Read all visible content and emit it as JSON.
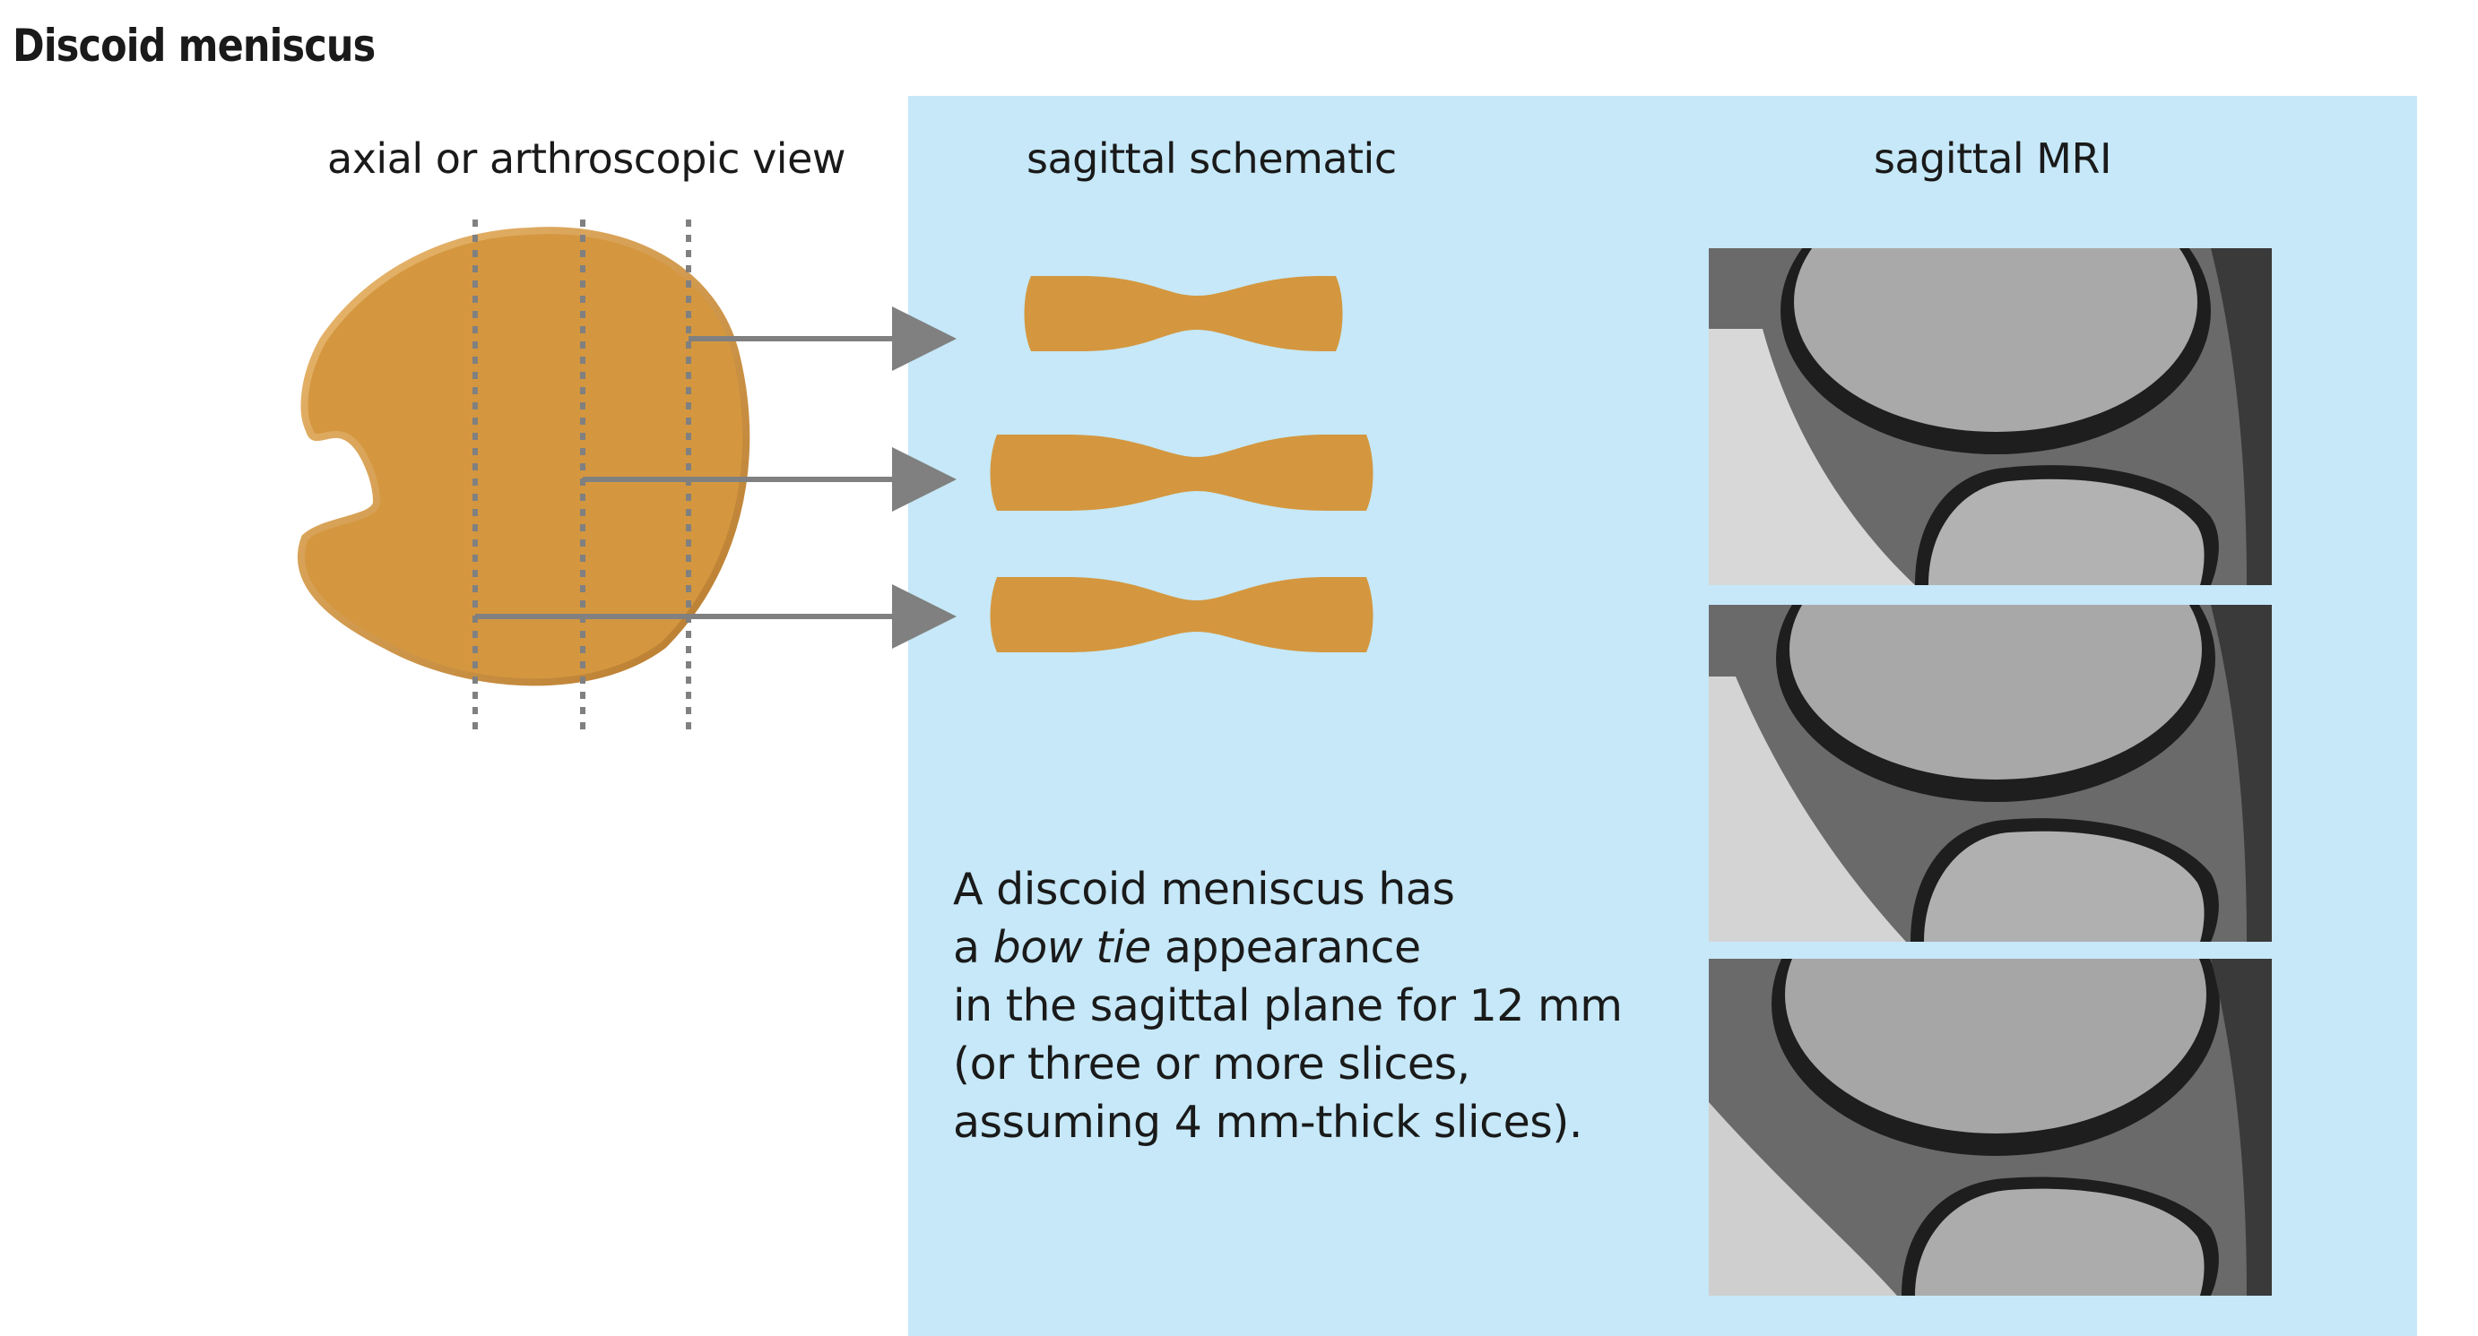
{
  "title": "Discoid meniscus",
  "labels": {
    "axial": "axial or arthroscopic view",
    "schematic": "sagittal schematic",
    "mri": "sagittal MRI"
  },
  "description": {
    "line1": "A discoid meniscus has",
    "line2_pre": "a ",
    "line2_em": "bow tie",
    "line2_post": " appearance",
    "line3": "in the sagittal plane for 12 mm",
    "line4": "(or three or more slices,",
    "line5": "assuming 4 mm-thick slices)."
  },
  "colors": {
    "meniscus": "#d4973f",
    "panel": "#c6e8f8",
    "arrow": "#808080"
  }
}
